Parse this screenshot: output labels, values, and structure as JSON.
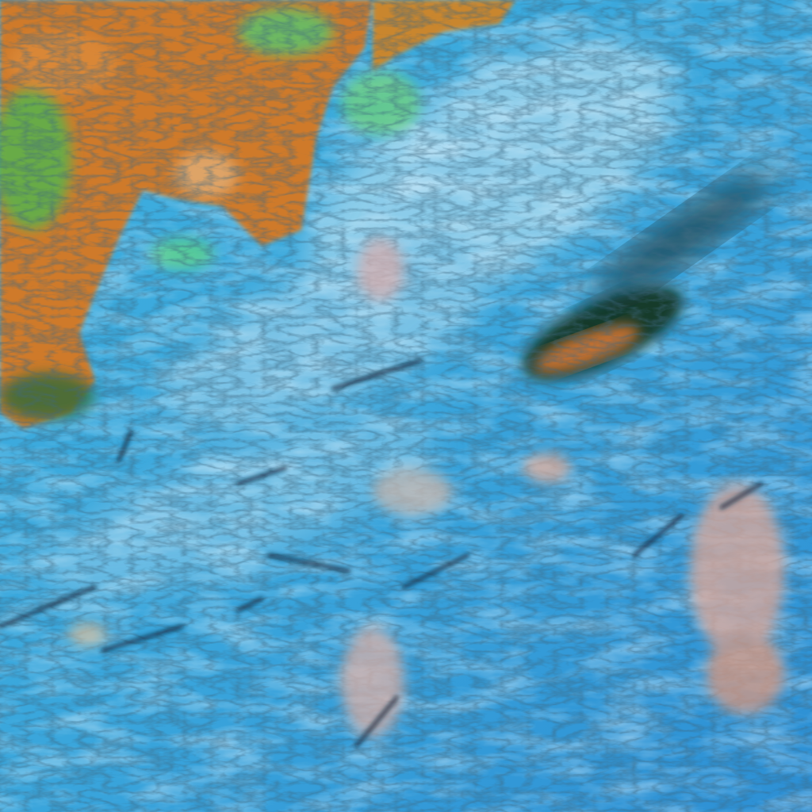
{
  "image": {
    "kind": "false-color satellite imagery",
    "colors": {
      "ocean": "#2f9ad6",
      "ocean_light": "#5cc0e6",
      "haze": "#9fd3ea",
      "land": "#d07a2c",
      "land_dark": "#a0521c",
      "vegetation": "#4fd07a",
      "cloud_pink": "#e0a898",
      "shadow": "#0c2438"
    }
  }
}
